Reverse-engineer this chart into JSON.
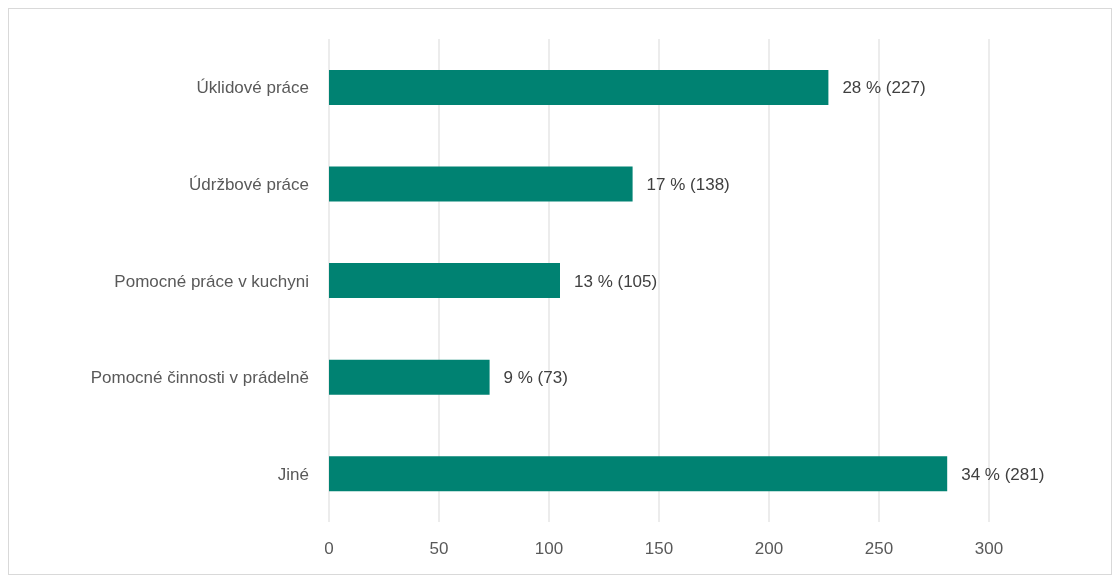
{
  "chart_data": {
    "type": "bar",
    "orientation": "horizontal",
    "categories": [
      "Úklidové práce",
      "Údržbové práce",
      "Pomocné práce v kuchyni",
      "Pomocné činnosti v prádelně",
      "Jiné"
    ],
    "values": [
      227,
      138,
      105,
      73,
      281
    ],
    "value_labels": [
      "28 % (227)",
      "17 % (138)",
      "13 % (105)",
      "9 % (73)",
      "34 % (281)"
    ],
    "color": "#008272",
    "xlim": [
      0,
      300
    ],
    "xticks": [
      0,
      50,
      100,
      150,
      200,
      250,
      300
    ],
    "grid": "x"
  }
}
